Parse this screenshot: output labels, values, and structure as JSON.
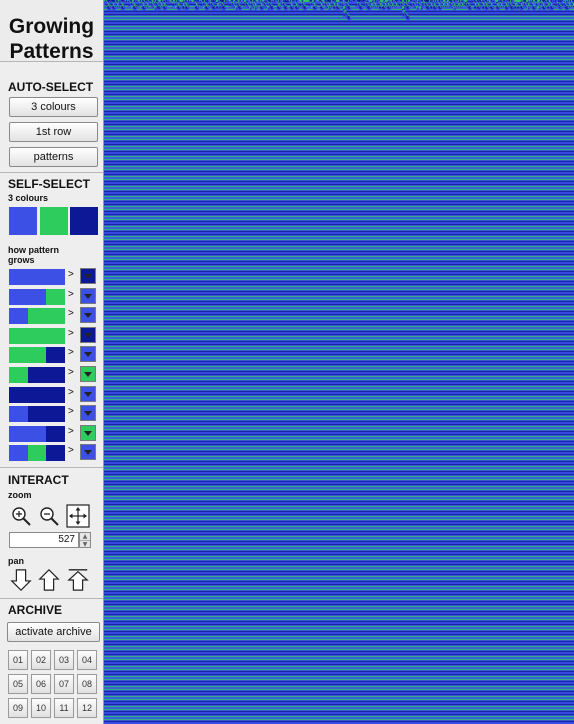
{
  "app": {
    "title_line1": "Growing",
    "title_line2": "Patterns"
  },
  "auto_select": {
    "heading": "AUTO-SELECT",
    "buttons": [
      "3 colours",
      "1st row",
      "patterns"
    ]
  },
  "self_select": {
    "heading": "SELF-SELECT",
    "colours_label": "3 colours",
    "colours": [
      "#3c50e6",
      "#2ecc5c",
      "#0c1896"
    ],
    "grows_label_1": "how pattern",
    "grows_label_2": "grows",
    "rules": [
      {
        "bar": [
          0,
          0,
          0
        ],
        "result": 2
      },
      {
        "bar": [
          0,
          0,
          1
        ],
        "result": 0
      },
      {
        "bar": [
          0,
          1,
          1
        ],
        "result": 0
      },
      {
        "bar": [
          1,
          1,
          1
        ],
        "result": 2
      },
      {
        "bar": [
          1,
          1,
          2
        ],
        "result": 0
      },
      {
        "bar": [
          1,
          2,
          2
        ],
        "result": 1
      },
      {
        "bar": [
          2,
          2,
          2
        ],
        "result": 0
      },
      {
        "bar": [
          0,
          2,
          2
        ],
        "result": 0
      },
      {
        "bar": [
          0,
          0,
          2
        ],
        "result": 1
      },
      {
        "bar": [
          0,
          1,
          2
        ],
        "result": 0
      }
    ],
    "arrow": ">"
  },
  "interact": {
    "heading": "INTERACT",
    "zoom_label": "zoom",
    "zoom_value": "527",
    "pan_label": "pan",
    "icons": [
      "zoom-in-icon",
      "zoom-out-icon",
      "fit-icon",
      "pan-down-icon",
      "pan-up-icon",
      "pan-top-icon"
    ]
  },
  "archive": {
    "heading": "ARCHIVE",
    "activate_label": "activate archive",
    "slots": [
      "01",
      "02",
      "03",
      "04",
      "05",
      "06",
      "07",
      "08",
      "09",
      "10",
      "11",
      "12"
    ]
  },
  "pattern_colors": {
    "c0": "#3c50e6",
    "c1": "#2ecc5c",
    "c2": "#0c1896",
    "bg": "#1a9a86"
  }
}
